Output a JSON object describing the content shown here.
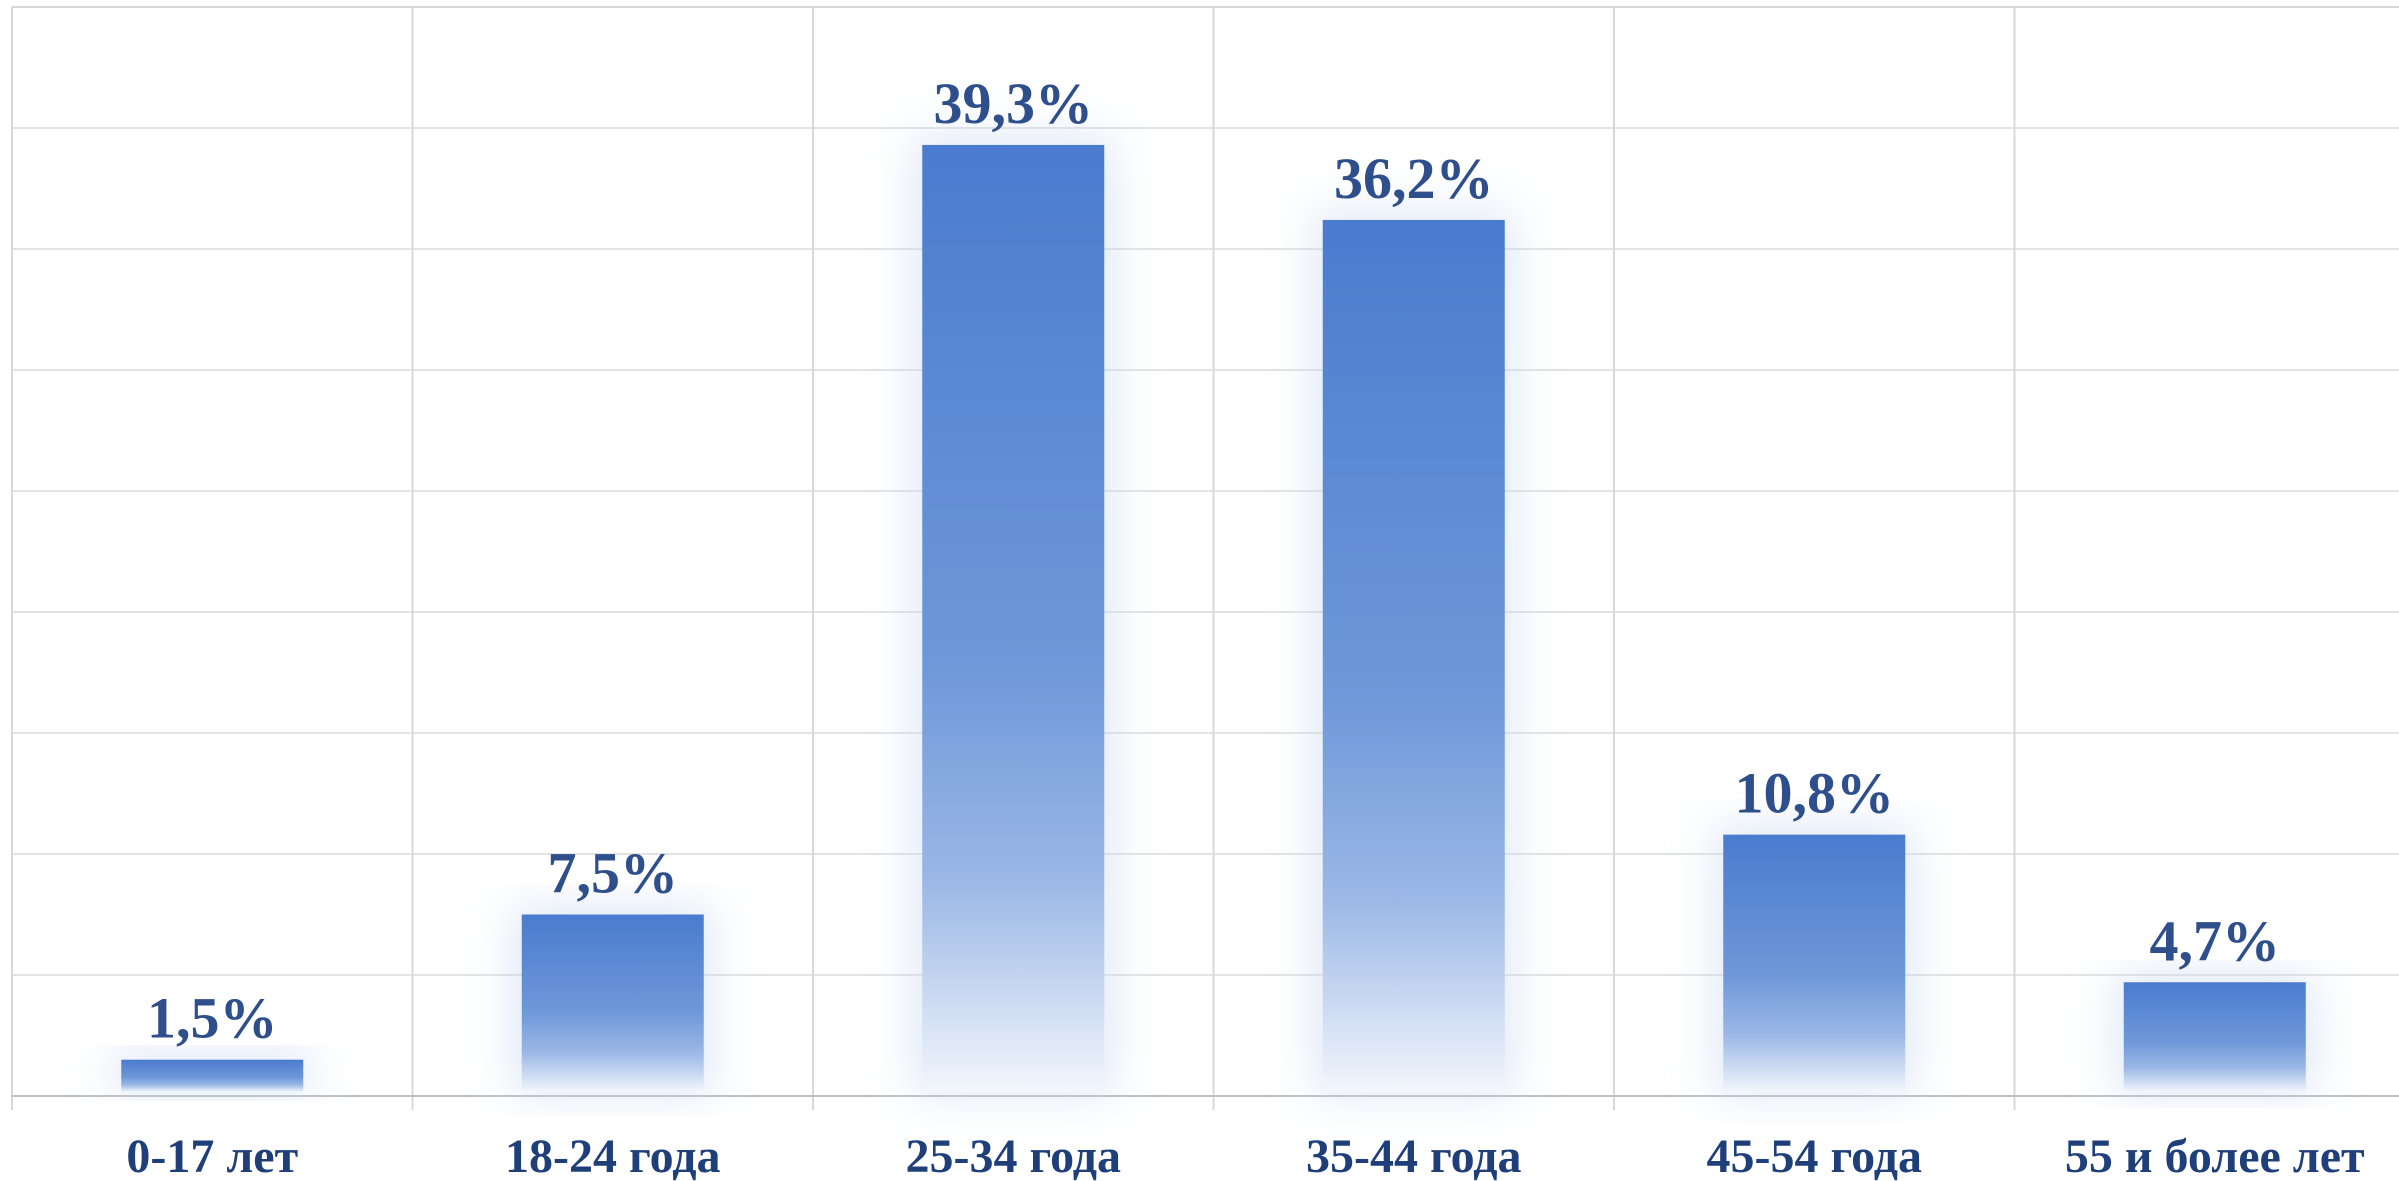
{
  "chart_data": {
    "type": "bar",
    "title": "",
    "xlabel": "",
    "ylabel": "",
    "categories": [
      "0-17 лет",
      "18-24 года",
      "25-34 года",
      "35-44 года",
      "45-54 года",
      "55 и более лет"
    ],
    "values": [
      1.5,
      7.5,
      39.3,
      36.2,
      10.8,
      4.7
    ],
    "value_labels": [
      "1,5%",
      "7,5%",
      "39,3%",
      "36,2%",
      "10,8%",
      "4,7%"
    ],
    "ylim": [
      0,
      45
    ],
    "y_grid_step": 5,
    "grid": true,
    "legend": "none",
    "colors": {
      "bar_top": "#4a7bcf",
      "bar_bottom": "#ffffff",
      "label": "#2f4f8c",
      "tick": "#1f3f7a",
      "grid": "#d8d8d8"
    }
  }
}
